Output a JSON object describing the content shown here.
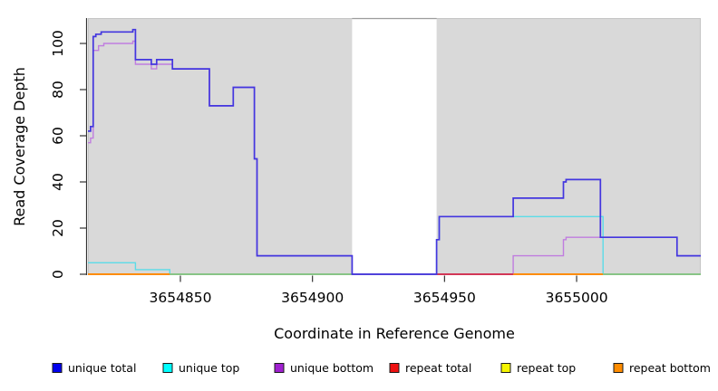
{
  "chart_data": {
    "type": "line",
    "subtype": "step-coverage",
    "title": "",
    "xlabel": "Coordinate in Reference Genome",
    "ylabel": "Read Coverage Depth",
    "xlim": [
      3654815,
      3655047
    ],
    "ylim": [
      0,
      111
    ],
    "x_ticks": [
      3654850,
      3654900,
      3654950,
      3655000
    ],
    "y_ticks": [
      0,
      20,
      40,
      60,
      80,
      100
    ],
    "grid": false,
    "panel_bg": "#d9d9d9",
    "panel_border": "#c4c4c4",
    "gap_region": {
      "x1": 3654915,
      "x2": 3654947,
      "fill": "#ffffff",
      "top_edge": "#9c9c9c"
    },
    "axis_color": "#333333",
    "legend_position": "bottom",
    "series": [
      {
        "id": "unique-total",
        "name": "unique total",
        "line_color": "#4336df",
        "legend_color": "#0000ee",
        "points": [
          [
            3654815,
            62
          ],
          [
            3654816,
            64
          ],
          [
            3654817,
            103
          ],
          [
            3654818,
            104
          ],
          [
            3654820,
            105
          ],
          [
            3654832,
            106
          ],
          [
            3654833,
            93
          ],
          [
            3654839,
            91
          ],
          [
            3654841,
            93
          ],
          [
            3654847,
            89
          ],
          [
            3654861,
            73
          ],
          [
            3654870,
            81
          ],
          [
            3654878,
            50
          ],
          [
            3654879,
            8
          ],
          [
            3654915,
            0
          ],
          [
            3654947,
            15
          ],
          [
            3654948,
            25
          ],
          [
            3654976,
            33
          ],
          [
            3654995,
            40
          ],
          [
            3654996,
            41
          ],
          [
            3655009,
            16
          ],
          [
            3655038,
            8
          ]
        ]
      },
      {
        "id": "unique-top",
        "name": "unique top",
        "line_color": "#5bdce8",
        "legend_color": "#00ffff",
        "points": [
          [
            3654815,
            5
          ],
          [
            3654833,
            2
          ],
          [
            3654846,
            0
          ],
          [
            3654947,
            15
          ],
          [
            3654948,
            25
          ],
          [
            3655010,
            0
          ]
        ]
      },
      {
        "id": "unique-bottom",
        "name": "unique bottom",
        "line_color": "#c07ddf",
        "legend_color": "#a020d0",
        "points": [
          [
            3654815,
            57
          ],
          [
            3654816,
            59
          ],
          [
            3654817,
            97
          ],
          [
            3654819,
            99
          ],
          [
            3654821,
            100
          ],
          [
            3654832,
            101
          ],
          [
            3654833,
            91
          ],
          [
            3654839,
            89
          ],
          [
            3654841,
            91
          ],
          [
            3654847,
            89
          ],
          [
            3654861,
            73
          ],
          [
            3654870,
            81
          ],
          [
            3654878,
            50
          ],
          [
            3654879,
            8
          ],
          [
            3654915,
            0
          ],
          [
            3654976,
            8
          ],
          [
            3654995,
            15
          ],
          [
            3654996,
            16
          ],
          [
            3655038,
            8
          ]
        ]
      },
      {
        "id": "repeat-total",
        "name": "repeat total",
        "line_color": "#d22c50",
        "legend_color": "#ee1111",
        "points": [
          [
            3654815,
            0
          ]
        ]
      },
      {
        "id": "repeat-top",
        "name": "repeat top",
        "line_color": "#f5f500",
        "legend_color": "#f5f500",
        "points": [
          [
            3654815,
            0
          ]
        ]
      },
      {
        "id": "repeat-bottom",
        "name": "repeat bottom",
        "line_color": "#ff8c00",
        "legend_color": "#ff8c00",
        "points": [
          [
            3654815,
            0
          ]
        ]
      }
    ],
    "baseline_overlaps": [
      {
        "x1": 3654815,
        "x2": 3654846,
        "color": "#ff8c00",
        "series": "repeat bottom"
      },
      {
        "x1": 3654846,
        "x2": 3654915,
        "color": "#85c785",
        "series": "unique top + repeat top"
      },
      {
        "x1": 3654947,
        "x2": 3654976,
        "color": "#d22c50",
        "series": "repeat total"
      },
      {
        "x1": 3654976,
        "x2": 3655010,
        "color": "#ff8c00",
        "series": "repeat bottom"
      },
      {
        "x1": 3655010,
        "x2": 3655047,
        "color": "#85c785",
        "series": "unique top + repeat top"
      }
    ]
  }
}
